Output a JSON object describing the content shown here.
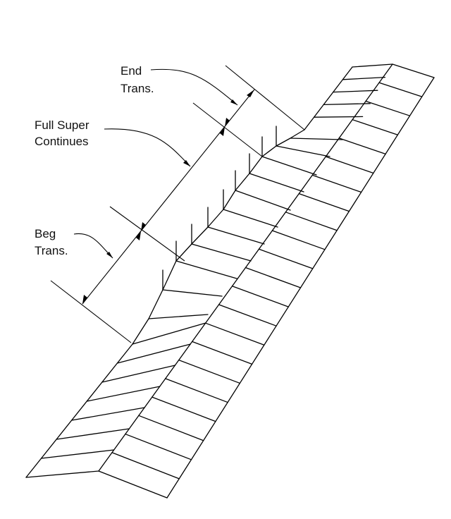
{
  "labels": {
    "end_line1": "End",
    "end_line2": "Trans.",
    "full_line1": "Full Super",
    "full_line2": "Continues",
    "beg_line1": "Beg",
    "beg_line2": "Trans."
  },
  "colors": {
    "ink": "#000000",
    "background": "#ffffff"
  }
}
